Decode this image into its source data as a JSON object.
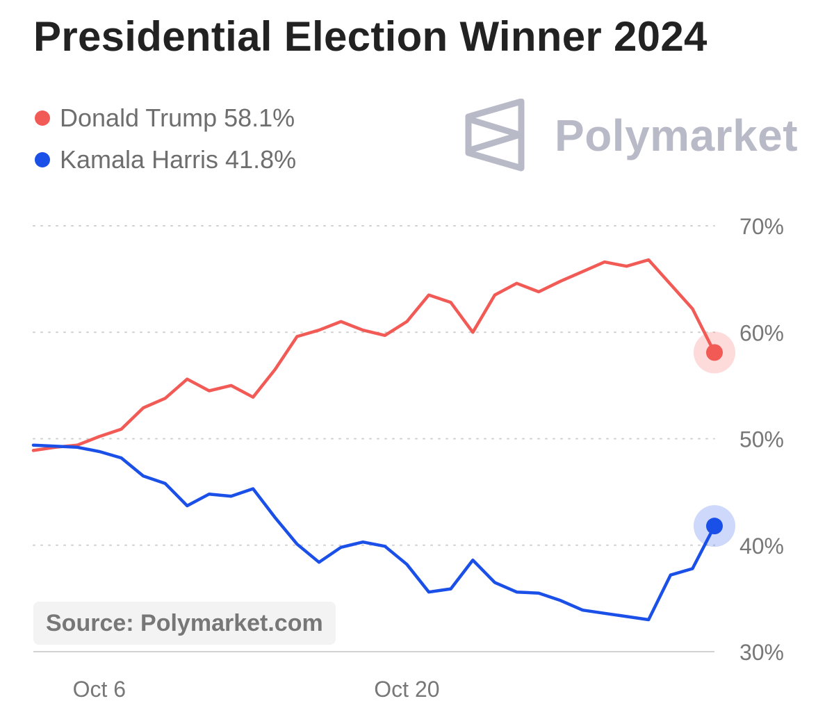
{
  "title": "Presidential Election Winner 2024",
  "logo": {
    "text": "Polymarket",
    "icon": "polymarket-logo-icon",
    "color": "#b9bac7"
  },
  "source": "Source: Polymarket.com",
  "legend": [
    {
      "label": "Donald Trump 58.1%",
      "color": "#f25a55"
    },
    {
      "label": "Kamala Harris 41.8%",
      "color": "#1a4fe8"
    }
  ],
  "chart_data": {
    "type": "line",
    "title": "Presidential Election Winner 2024",
    "xlabel": "",
    "ylabel": "",
    "x_ticks": [
      "Oct 6",
      "Oct 20"
    ],
    "y_ticks": [
      "30%",
      "40%",
      "50%",
      "60%",
      "70%"
    ],
    "ylim": [
      30,
      70
    ],
    "grid": true,
    "legend_position": "top-left",
    "x": [
      "Oct 3",
      "Oct 4",
      "Oct 5",
      "Oct 6",
      "Oct 7",
      "Oct 8",
      "Oct 9",
      "Oct 10",
      "Oct 11",
      "Oct 12",
      "Oct 13",
      "Oct 14",
      "Oct 15",
      "Oct 16",
      "Oct 17",
      "Oct 18",
      "Oct 19",
      "Oct 20",
      "Oct 21",
      "Oct 22",
      "Oct 23",
      "Oct 24",
      "Oct 25",
      "Oct 26",
      "Oct 27",
      "Oct 28",
      "Oct 29",
      "Oct 30",
      "Oct 31",
      "Nov 1",
      "Nov 2",
      "Nov 3"
    ],
    "series": [
      {
        "name": "Donald Trump",
        "color": "#f25a55",
        "last_value": 58.1,
        "values": [
          48.9,
          49.2,
          49.4,
          50.2,
          50.9,
          52.9,
          53.8,
          55.6,
          54.5,
          55.0,
          53.9,
          56.5,
          59.6,
          60.2,
          61.0,
          60.2,
          59.7,
          61.0,
          63.5,
          62.8,
          60.0,
          63.5,
          64.6,
          63.8,
          64.8,
          65.7,
          66.6,
          66.2,
          66.8,
          64.5,
          62.2,
          58.1
        ]
      },
      {
        "name": "Kamala Harris",
        "color": "#1a4fe8",
        "last_value": 41.8,
        "values": [
          49.4,
          49.3,
          49.2,
          48.8,
          48.2,
          46.5,
          45.8,
          43.7,
          44.8,
          44.6,
          45.3,
          42.6,
          40.1,
          38.4,
          39.8,
          40.3,
          39.9,
          38.2,
          35.6,
          35.9,
          38.6,
          36.5,
          35.6,
          35.5,
          34.8,
          33.9,
          33.6,
          33.3,
          33.0,
          37.2,
          37.8,
          41.8
        ]
      }
    ]
  }
}
